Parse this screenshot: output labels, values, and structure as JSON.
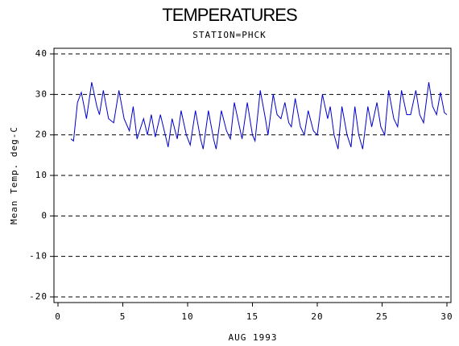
{
  "chart_data": {
    "type": "line",
    "title": "TEMPERATURES",
    "subtitle": "STATION=PHCK",
    "x_label": "AUG 1993",
    "y_label": "Mean Temp. deg-C",
    "color": "#0000cc",
    "grid": true,
    "xlim": [
      0,
      30
    ],
    "xticks": [
      0,
      5,
      10,
      15,
      20,
      25,
      30
    ],
    "ylim": [
      -20,
      40
    ],
    "yticks": [
      -20,
      -10,
      0,
      10,
      20,
      30,
      40
    ],
    "x": [
      1.0,
      1.2,
      1.5,
      1.8,
      2.2,
      2.6,
      3.0,
      3.2,
      3.5,
      3.9,
      4.3,
      4.7,
      5.1,
      5.5,
      5.8,
      6.1,
      6.4,
      6.6,
      6.9,
      7.2,
      7.5,
      7.9,
      8.2,
      8.5,
      8.8,
      9.2,
      9.5,
      9.9,
      10.2,
      10.6,
      11.0,
      11.2,
      11.6,
      12.0,
      12.2,
      12.6,
      13.0,
      13.3,
      13.6,
      14.0,
      14.2,
      14.6,
      15.0,
      15.2,
      15.6,
      16.0,
      16.2,
      16.6,
      16.9,
      17.2,
      17.5,
      17.8,
      18.0,
      18.3,
      18.7,
      19.0,
      19.3,
      19.7,
      20.0,
      20.4,
      20.8,
      21.0,
      21.3,
      21.6,
      21.9,
      22.3,
      22.6,
      22.9,
      23.2,
      23.5,
      23.9,
      24.2,
      24.6,
      24.9,
      25.2,
      25.5,
      25.9,
      26.2,
      26.5,
      26.9,
      27.2,
      27.6,
      27.9,
      28.2,
      28.6,
      28.9,
      29.2,
      29.5,
      29.8,
      30.0
    ],
    "values": [
      19,
      18.5,
      28,
      30.5,
      24,
      33,
      27,
      25,
      31,
      24,
      23,
      31,
      24,
      21,
      27,
      19,
      22,
      24,
      20,
      25,
      19.5,
      25,
      21,
      17,
      24,
      19,
      26,
      20,
      17.5,
      26,
      19,
      16.5,
      26,
      19,
      16.5,
      26,
      21,
      19,
      28,
      22,
      19,
      28,
      20,
      18.5,
      31,
      24,
      20,
      30,
      25,
      24,
      28,
      23,
      22,
      29,
      22,
      20,
      26,
      21,
      20,
      30,
      24,
      27,
      20,
      16.5,
      27,
      20,
      17,
      27,
      20,
      16.5,
      27,
      22,
      28,
      22,
      20,
      31,
      24,
      22,
      31,
      25,
      25,
      31,
      25,
      23,
      33,
      27,
      25,
      30.5,
      25.5,
      25
    ]
  }
}
